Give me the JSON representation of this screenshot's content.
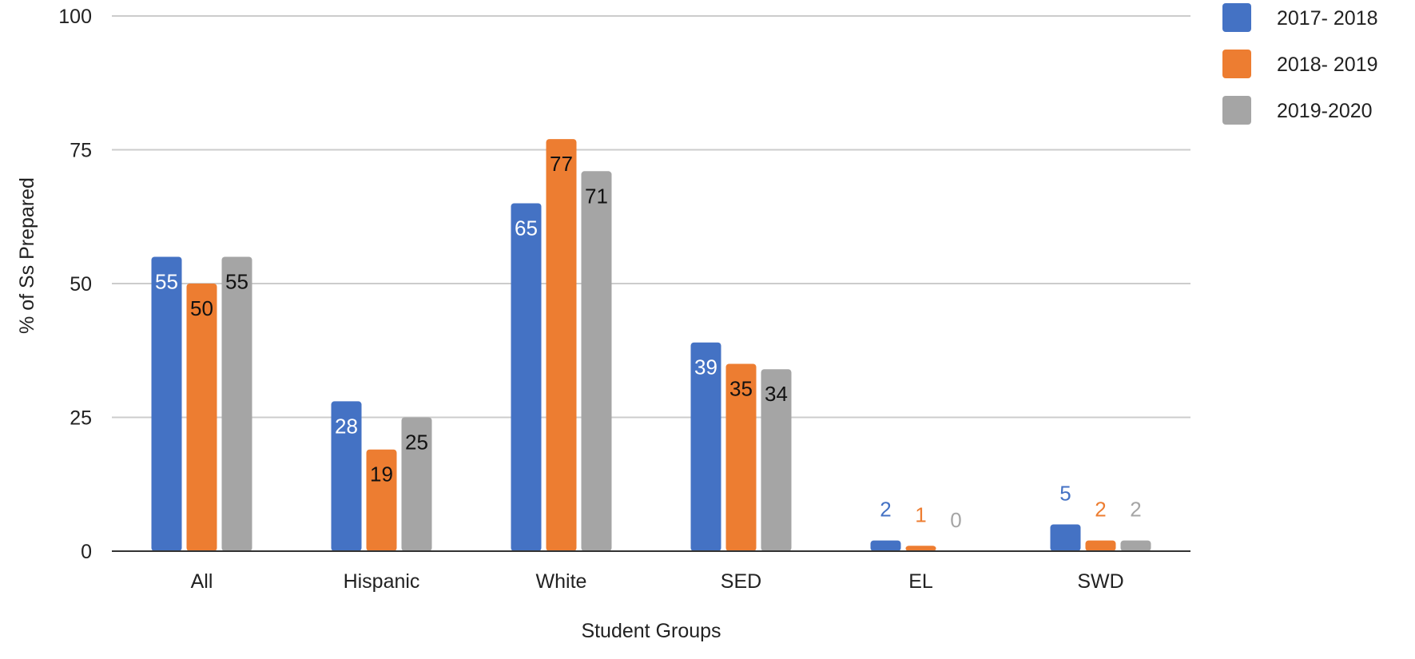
{
  "chart_data": {
    "type": "bar",
    "title": "",
    "xlabel": "Student Groups",
    "ylabel": "% of Ss Prepared",
    "ylim": [
      0,
      100
    ],
    "yticks": [
      0,
      25,
      50,
      75,
      100
    ],
    "grid": true,
    "legend_position": "top-right",
    "categories": [
      "All",
      "Hispanic",
      "White",
      "SED",
      "EL",
      "SWD"
    ],
    "series": [
      {
        "name": "2017- 2018",
        "color": "#4472c4",
        "values": [
          55,
          28,
          65,
          39,
          2,
          5
        ]
      },
      {
        "name": "2018- 2019",
        "color": "#ed7d31",
        "values": [
          50,
          19,
          77,
          35,
          1,
          2
        ]
      },
      {
        "name": "2019-2020",
        "color": "#a5a5a5",
        "values": [
          55,
          25,
          71,
          34,
          0,
          2
        ]
      }
    ]
  }
}
